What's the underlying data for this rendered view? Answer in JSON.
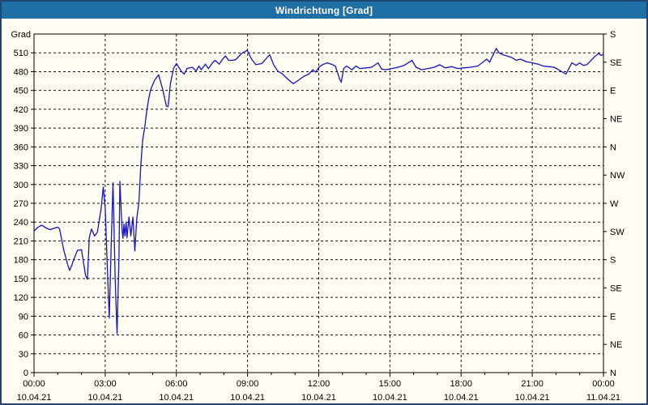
{
  "window": {
    "title": "Windrichtung [Grad]"
  },
  "chart_data": {
    "type": "line",
    "title": "Windrichtung [Grad]",
    "ylabel_left_unit": "Grad",
    "y_axis_left": {
      "min": 0,
      "max": 540,
      "tick_step": 30,
      "labeled_max": 510
    },
    "y_axis_right": {
      "tick_step_degrees": 45,
      "labels": [
        "N",
        "NE",
        "E",
        "SE",
        "S",
        "SW",
        "W",
        "NW",
        "N",
        "NE",
        "E",
        "SE",
        "S"
      ]
    },
    "x_axis": {
      "span_hours": 24,
      "major_tick_hours": 3,
      "minor_tick_hours": 1,
      "ticks": [
        {
          "time": "00:00",
          "date": "10.04.21"
        },
        {
          "time": "03:00",
          "date": "10.04.21"
        },
        {
          "time": "06:00",
          "date": "10.04.21"
        },
        {
          "time": "09:00",
          "date": "10.04.21"
        },
        {
          "time": "12:00",
          "date": "10.04.21"
        },
        {
          "time": "15:00",
          "date": "10.04.21"
        },
        {
          "time": "18:00",
          "date": "10.04.21"
        },
        {
          "time": "21:00",
          "date": "10.04.21"
        },
        {
          "time": "00:00",
          "date": "11.04.21"
        }
      ]
    },
    "grid": {
      "horizontal_step": 30,
      "vertical_step_hours": 3,
      "style": "dashed"
    },
    "colors": {
      "line": "#1313cd",
      "titlebar": "#1d6fa5",
      "border": "#1f4573",
      "grid": "#141414",
      "text": "#000000",
      "background": "#fffdf2"
    },
    "series": [
      {
        "name": "Windrichtung",
        "points_hours_degrees": [
          [
            0,
            226
          ],
          [
            0.17,
            232
          ],
          [
            0.33,
            235
          ],
          [
            0.5,
            231
          ],
          [
            0.67,
            228
          ],
          [
            0.83,
            230
          ],
          [
            1,
            232
          ],
          [
            1.08,
            229
          ],
          [
            1.25,
            196
          ],
          [
            1.42,
            172
          ],
          [
            1.5,
            163
          ],
          [
            1.58,
            170
          ],
          [
            1.67,
            180
          ],
          [
            1.83,
            195
          ],
          [
            2,
            196
          ],
          [
            2.17,
            155
          ],
          [
            2.25,
            149
          ],
          [
            2.33,
            215
          ],
          [
            2.42,
            229
          ],
          [
            2.55,
            218
          ],
          [
            2.67,
            224
          ],
          [
            2.83,
            262
          ],
          [
            2.92,
            296
          ],
          [
            3,
            262
          ],
          [
            3.08,
            178
          ],
          [
            3.17,
            87
          ],
          [
            3.25,
            200
          ],
          [
            3.33,
            303
          ],
          [
            3.42,
            150
          ],
          [
            3.5,
            62
          ],
          [
            3.58,
            185
          ],
          [
            3.62,
            305
          ],
          [
            3.71,
            228
          ],
          [
            3.75,
            214
          ],
          [
            3.79,
            237
          ],
          [
            3.83,
            218
          ],
          [
            3.88,
            240
          ],
          [
            3.92,
            215
          ],
          [
            4,
            248
          ],
          [
            4.08,
            218
          ],
          [
            4.17,
            248
          ],
          [
            4.25,
            194
          ],
          [
            4.33,
            245
          ],
          [
            4.42,
            272
          ],
          [
            4.5,
            330
          ],
          [
            4.58,
            372
          ],
          [
            4.67,
            392
          ],
          [
            4.75,
            417
          ],
          [
            4.83,
            436
          ],
          [
            4.92,
            452
          ],
          [
            5.08,
            466
          ],
          [
            5.25,
            475
          ],
          [
            5.42,
            452
          ],
          [
            5.58,
            425
          ],
          [
            5.65,
            424
          ],
          [
            5.75,
            461
          ],
          [
            5.88,
            485
          ],
          [
            6,
            493
          ],
          [
            6.1,
            487
          ],
          [
            6.2,
            481
          ],
          [
            6.33,
            476
          ],
          [
            6.45,
            485
          ],
          [
            6.67,
            487
          ],
          [
            6.83,
            481
          ],
          [
            6.95,
            489
          ],
          [
            7.05,
            483
          ],
          [
            7.22,
            492
          ],
          [
            7.35,
            485
          ],
          [
            7.52,
            494
          ],
          [
            7.63,
            498
          ],
          [
            7.8,
            492
          ],
          [
            7.97,
            501
          ],
          [
            8.07,
            505
          ],
          [
            8.2,
            498
          ],
          [
            8.33,
            498
          ],
          [
            8.5,
            499
          ],
          [
            8.75,
            509
          ],
          [
            8.98,
            514
          ],
          [
            9.17,
            500
          ],
          [
            9.35,
            491
          ],
          [
            9.6,
            493
          ],
          [
            9.93,
            507
          ],
          [
            10.1,
            491
          ],
          [
            10.27,
            481
          ],
          [
            10.45,
            477
          ],
          [
            10.67,
            469
          ],
          [
            10.92,
            461
          ],
          [
            11.1,
            465
          ],
          [
            11.35,
            472
          ],
          [
            11.58,
            476
          ],
          [
            11.75,
            483
          ],
          [
            11.87,
            479
          ],
          [
            12.03,
            488
          ],
          [
            12.2,
            492
          ],
          [
            12.37,
            494
          ],
          [
            12.53,
            492
          ],
          [
            12.7,
            489
          ],
          [
            12.88,
            468
          ],
          [
            12.95,
            463
          ],
          [
            13.05,
            485
          ],
          [
            13.17,
            489
          ],
          [
            13.4,
            483
          ],
          [
            13.57,
            489
          ],
          [
            13.73,
            485
          ],
          [
            14,
            486
          ],
          [
            14.23,
            487
          ],
          [
            14.5,
            494
          ],
          [
            14.65,
            484
          ],
          [
            14.83,
            483
          ],
          [
            15.08,
            485
          ],
          [
            15.35,
            487
          ],
          [
            15.6,
            490
          ],
          [
            15.85,
            496
          ],
          [
            15.93,
            498
          ],
          [
            16.1,
            487
          ],
          [
            16.33,
            483
          ],
          [
            16.6,
            485
          ],
          [
            16.87,
            487
          ],
          [
            17.1,
            491
          ],
          [
            17.33,
            486
          ],
          [
            17.6,
            488
          ],
          [
            17.87,
            485
          ],
          [
            18.1,
            486
          ],
          [
            18.4,
            487
          ],
          [
            18.7,
            489
          ],
          [
            18.95,
            496
          ],
          [
            19.08,
            500
          ],
          [
            19.2,
            495
          ],
          [
            19.48,
            517
          ],
          [
            19.6,
            510
          ],
          [
            19.75,
            507
          ],
          [
            20.1,
            503
          ],
          [
            20.33,
            498
          ],
          [
            20.5,
            500
          ],
          [
            20.75,
            496
          ],
          [
            21,
            494
          ],
          [
            21.25,
            492
          ],
          [
            21.45,
            489
          ],
          [
            21.7,
            488
          ],
          [
            21.92,
            487
          ],
          [
            22.2,
            481
          ],
          [
            22.42,
            476
          ],
          [
            22.67,
            494
          ],
          [
            22.85,
            490
          ],
          [
            23,
            494
          ],
          [
            23.15,
            490
          ],
          [
            23.3,
            491
          ],
          [
            23.63,
            504
          ],
          [
            23.8,
            509
          ],
          [
            23.9,
            506
          ],
          [
            24,
            507
          ]
        ]
      }
    ]
  }
}
